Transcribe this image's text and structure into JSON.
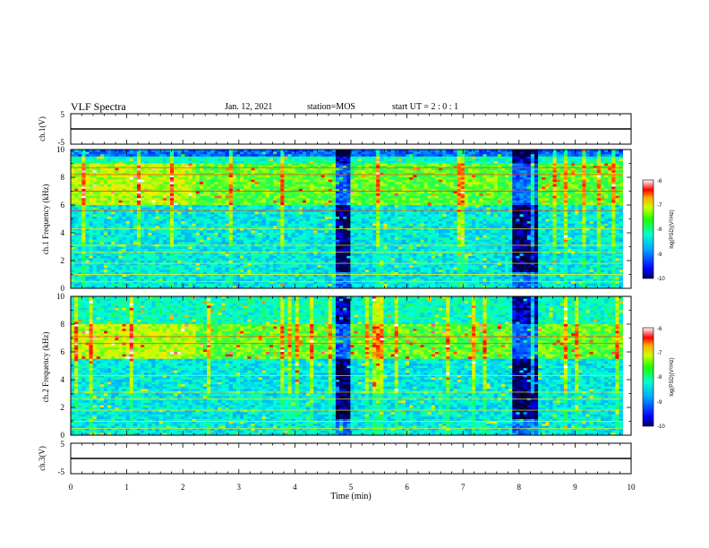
{
  "header": {
    "title": "VLF Spectra",
    "date": "Jan. 12, 2021",
    "station": "station=MOS",
    "start": "start UT =  2 : 0 : 1"
  },
  "colors": {
    "colormap": [
      "#000033",
      "#0000ff",
      "#0088ff",
      "#00ffff",
      "#00ff66",
      "#aaff00",
      "#ffff00",
      "#ff8800",
      "#ff0000",
      "#ffffff"
    ]
  },
  "chart_data": [
    {
      "type": "line",
      "panel": "ch1-voltage",
      "ylabel": "ch.1(V)",
      "ylim": [
        -5,
        5
      ],
      "yticks": [
        "5",
        "-5"
      ],
      "x": [
        0,
        10
      ],
      "values": [
        0,
        0
      ]
    },
    {
      "type": "heatmap",
      "panel": "ch1-spectrogram",
      "ylabel": "ch.1 Frequency (kHz)",
      "ylim": [
        0,
        10
      ],
      "yticks": [
        "0",
        "2",
        "4",
        "6",
        "8",
        "10"
      ],
      "xlim": [
        0,
        10
      ],
      "data_extent_min": 9.85,
      "colorbar": {
        "label": "log(PSD)(V²/Hz)",
        "range": [
          -10,
          -6
        ],
        "ticks": [
          "-6",
          "-7",
          "-8",
          "-9",
          "-10"
        ]
      },
      "quiet_intervals_min": [
        [
          4.7,
          5.0
        ],
        [
          7.85,
          8.35
        ]
      ],
      "dominant_band_khz": [
        6.0,
        9.0
      ],
      "tone_lines_khz": [
        0.5,
        1.0,
        1.8,
        2.6,
        3.1,
        4.3,
        5.6,
        7.0,
        8.2,
        8.7
      ]
    },
    {
      "type": "heatmap",
      "panel": "ch2-spectrogram",
      "ylabel": "ch.2 Frequency (kHz)",
      "ylim": [
        0,
        10
      ],
      "yticks": [
        "0",
        "2",
        "4",
        "6",
        "8",
        "10"
      ],
      "xlim": [
        0,
        10
      ],
      "data_extent_min": 9.85,
      "colorbar": {
        "label": "log(PSD)(V²/Hz)",
        "range": [
          -10,
          -6
        ],
        "ticks": [
          "-6",
          "-7",
          "-8",
          "-9",
          "-10"
        ]
      },
      "quiet_intervals_min": [
        [
          4.7,
          5.0
        ],
        [
          7.85,
          8.35
        ]
      ],
      "dominant_band_khz": [
        5.5,
        8.0
      ],
      "tone_lines_khz": [
        0.5,
        1.0,
        1.8,
        2.6,
        3.1,
        4.3,
        6.6,
        7.1
      ]
    },
    {
      "type": "line",
      "panel": "ch3-voltage",
      "ylabel": "ch.3(V)",
      "ylim": [
        -5,
        5
      ],
      "yticks": [
        "5",
        "-5"
      ],
      "x": [
        0,
        10
      ],
      "values": [
        0,
        0
      ]
    }
  ],
  "xaxis": {
    "label": "Time (min)",
    "xlim": [
      0,
      10
    ],
    "ticks": [
      "0",
      "1",
      "2",
      "3",
      "4",
      "5",
      "6",
      "7",
      "8",
      "9",
      "10"
    ]
  }
}
